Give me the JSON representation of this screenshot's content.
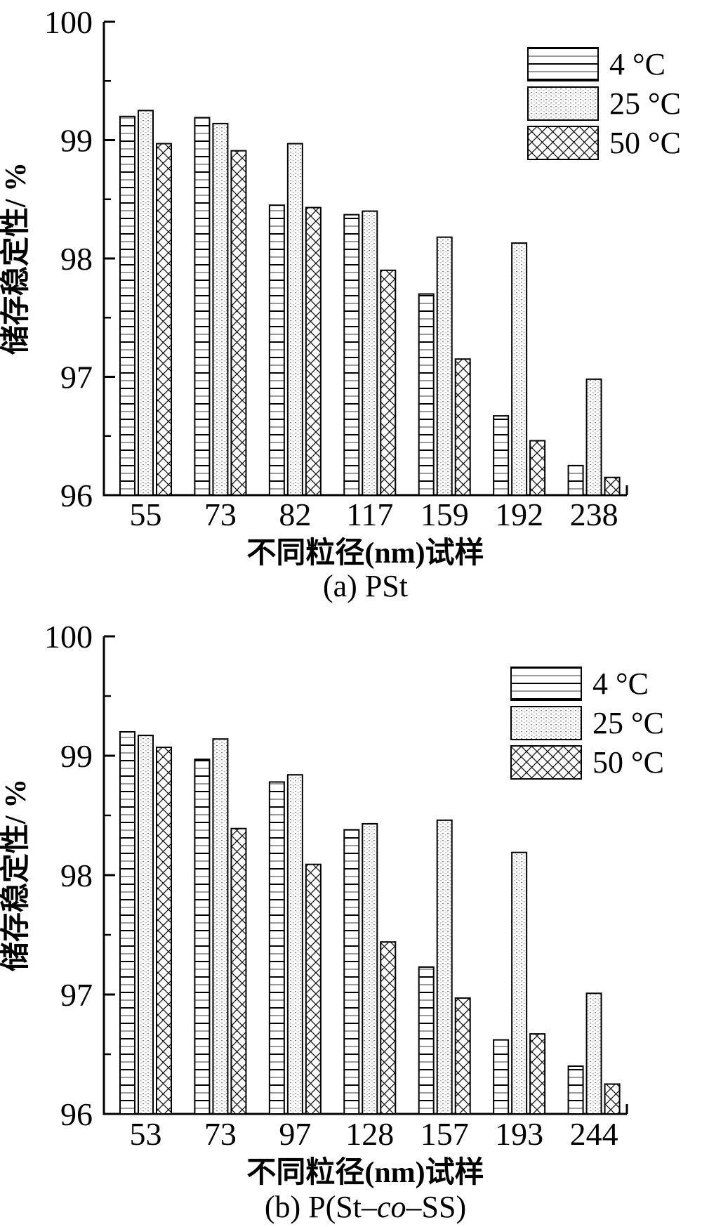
{
  "figure": {
    "background": "#ffffff",
    "ink_color": "#000000",
    "stipple_color": "#8a8a8a"
  },
  "chart_data": [
    {
      "type": "bar",
      "title": "(a) PSt",
      "caption_parts": [
        {
          "t": "(a) PSt",
          "i": false
        }
      ],
      "xlabel": "不同粒径(nm)试样",
      "ylabel": "储存稳定性/ %",
      "ylim": [
        96,
        100
      ],
      "yticks": [
        96,
        97,
        98,
        99,
        100
      ],
      "minor_tick_step": 0.5,
      "grid": false,
      "legend_position": "top-right",
      "categories": [
        "55",
        "73",
        "82",
        "117",
        "159",
        "192",
        "238"
      ],
      "series": [
        {
          "name": "4 °C",
          "pattern": "horizontal-lines",
          "values": [
            99.2,
            99.19,
            98.45,
            98.37,
            97.7,
            96.67,
            96.25
          ]
        },
        {
          "name": "25 °C",
          "pattern": "stipple-dots",
          "values": [
            99.25,
            99.14,
            98.97,
            98.4,
            98.18,
            98.13,
            96.98
          ]
        },
        {
          "name": "50 °C",
          "pattern": "crosshatch",
          "values": [
            98.97,
            98.91,
            98.43,
            97.9,
            97.15,
            96.46,
            96.15
          ]
        }
      ]
    },
    {
      "type": "bar",
      "title": "(b) P(St–co–SS)",
      "caption_parts": [
        {
          "t": "(b) P(St–",
          "i": false
        },
        {
          "t": "co",
          "i": true
        },
        {
          "t": "–SS)",
          "i": false
        }
      ],
      "xlabel": "不同粒径(nm)试样",
      "ylabel": "储存稳定性/ %",
      "ylim": [
        96,
        100
      ],
      "yticks": [
        96,
        97,
        98,
        99,
        100
      ],
      "minor_tick_step": 0.5,
      "grid": false,
      "legend_position": "top-right",
      "categories": [
        "53",
        "73",
        "97",
        "128",
        "157",
        "193",
        "244"
      ],
      "series": [
        {
          "name": "4 °C",
          "pattern": "horizontal-lines",
          "values": [
            99.2,
            98.97,
            98.78,
            98.38,
            97.23,
            96.62,
            96.4
          ]
        },
        {
          "name": "25 °C",
          "pattern": "stipple-dots",
          "values": [
            99.17,
            99.14,
            98.84,
            98.43,
            98.46,
            98.19,
            97.01
          ]
        },
        {
          "name": "50 °C",
          "pattern": "crosshatch",
          "values": [
            99.07,
            98.39,
            98.09,
            97.44,
            96.97,
            96.67,
            96.25
          ]
        }
      ]
    }
  ]
}
